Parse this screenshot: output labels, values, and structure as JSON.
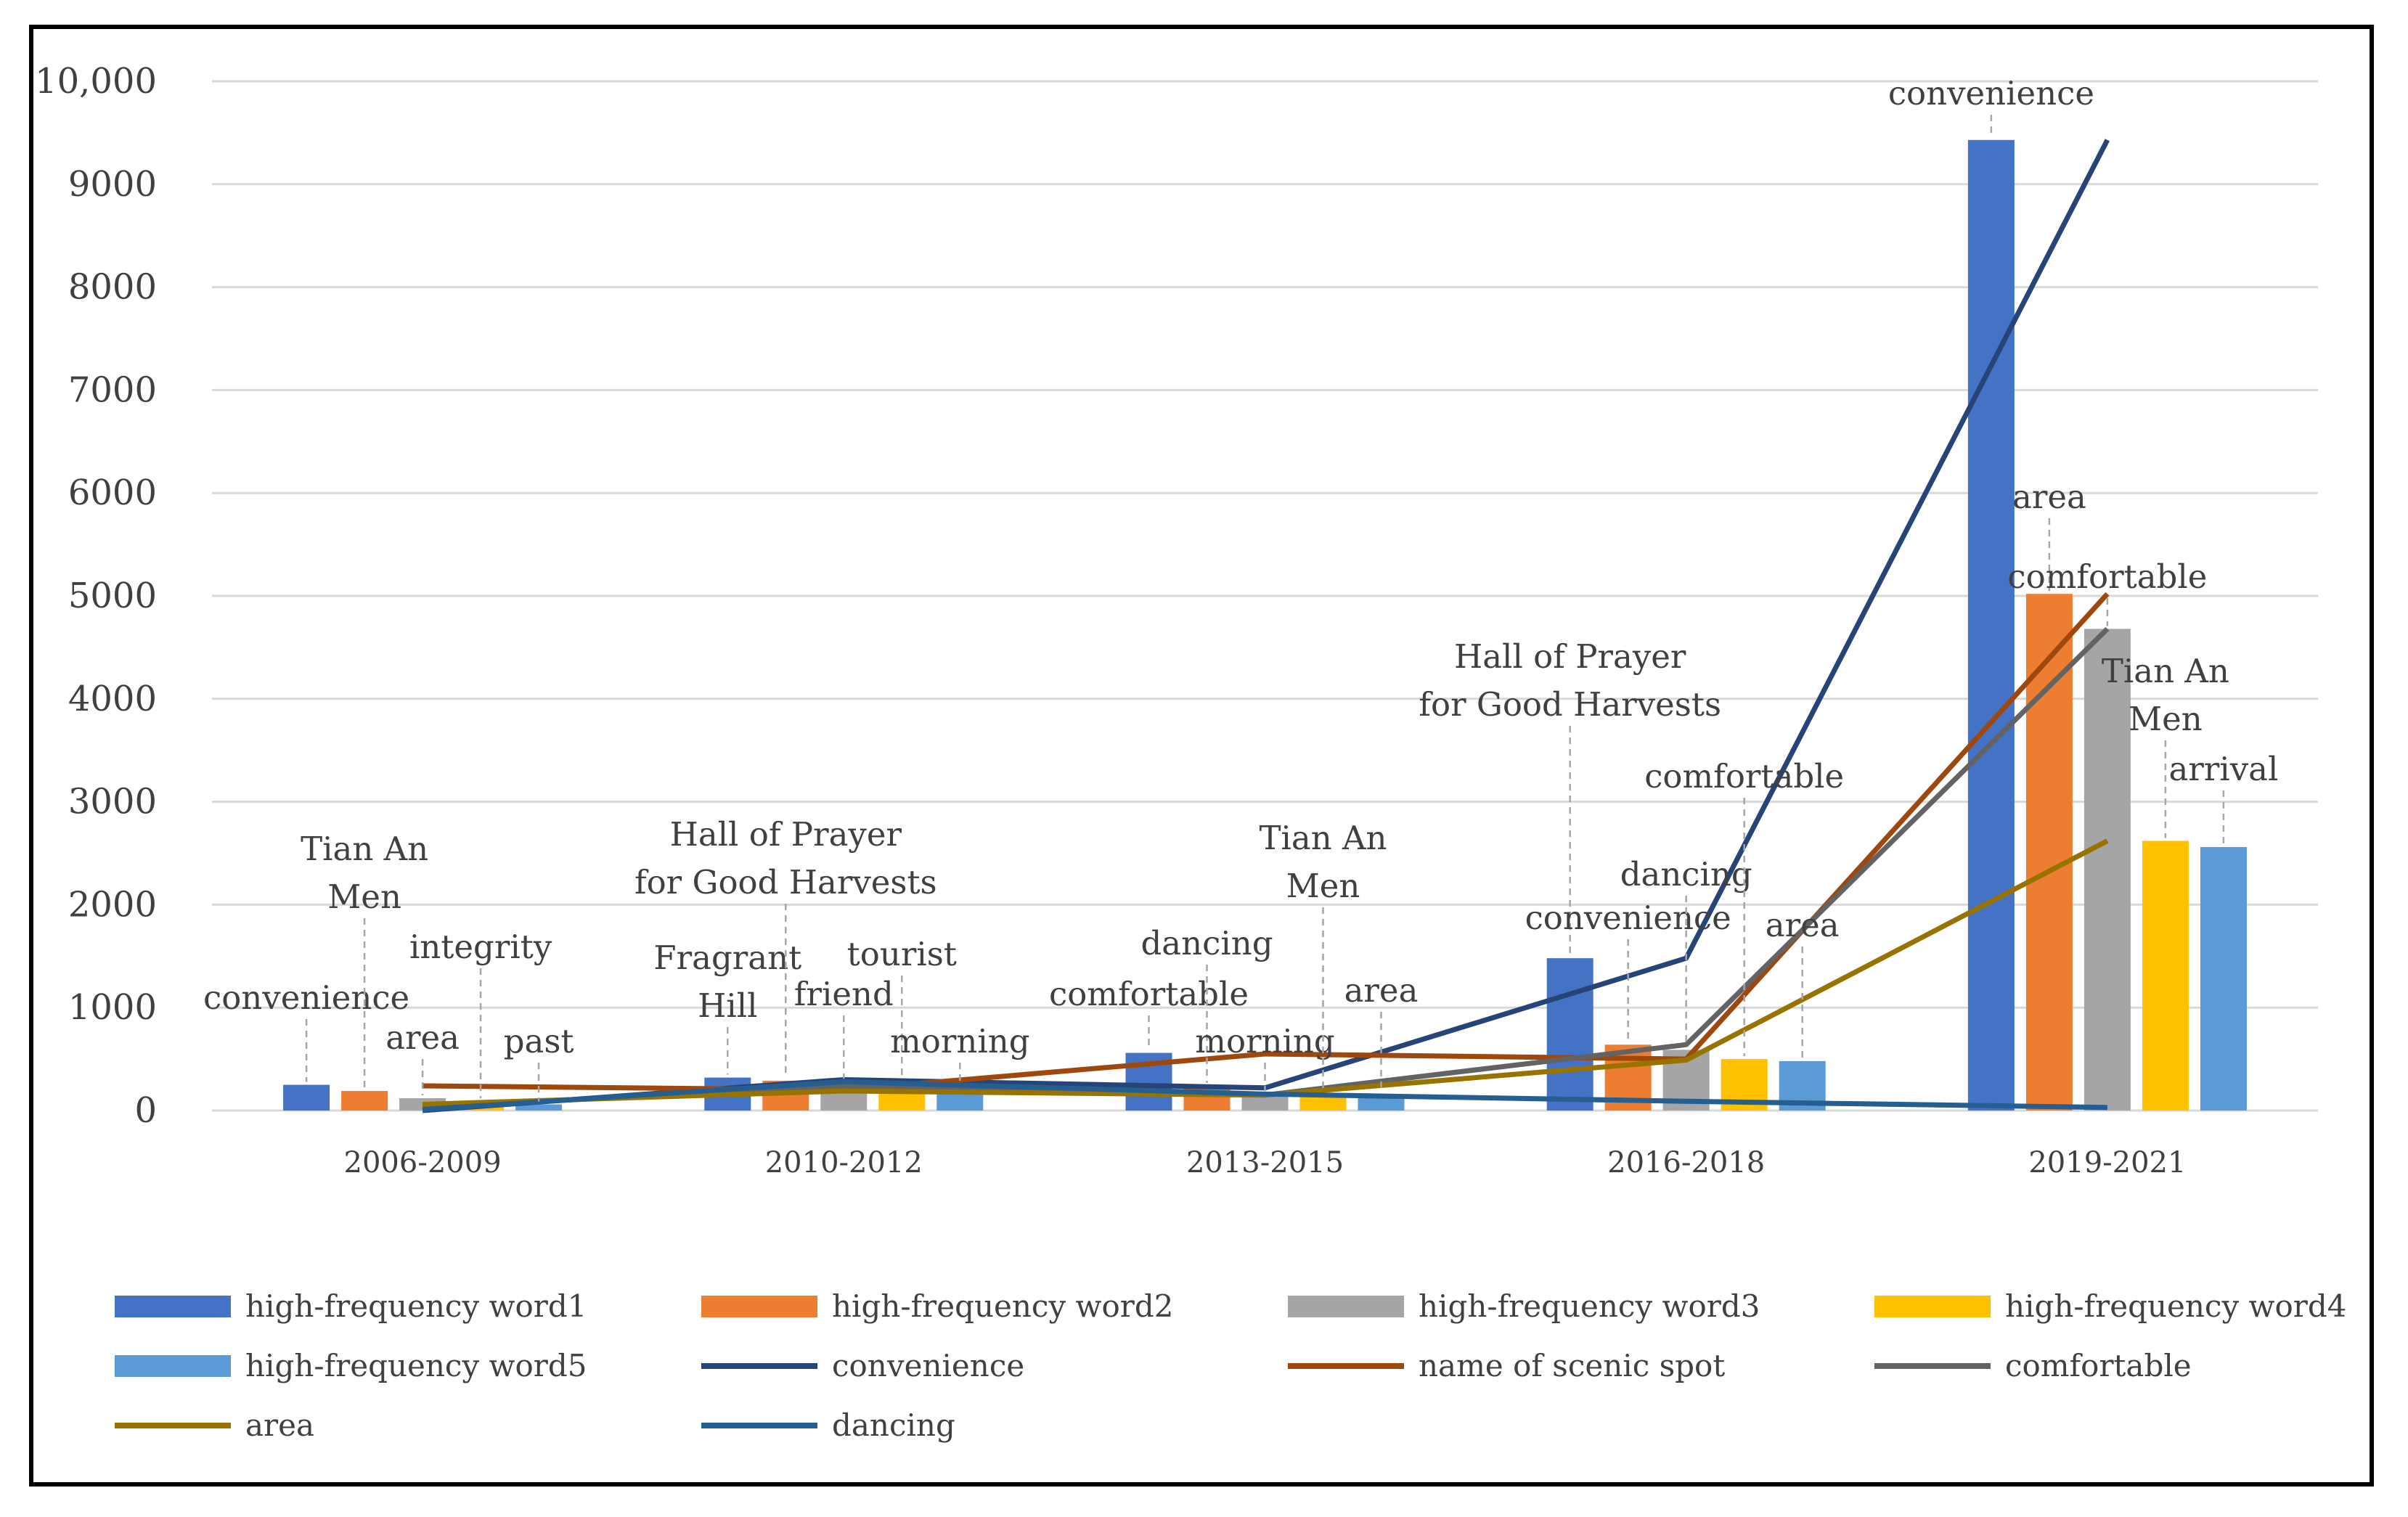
{
  "chart_data": {
    "type": "bar",
    "title": "",
    "xlabel": "",
    "ylabel": "",
    "ylim": [
      0,
      10000
    ],
    "yticks": [
      0,
      1000,
      2000,
      3000,
      4000,
      5000,
      6000,
      7000,
      8000,
      9000,
      10000
    ],
    "ytick_labels": [
      "0",
      "1000",
      "2000",
      "3000",
      "4000",
      "5000",
      "6000",
      "7000",
      "8000",
      "9000",
      "10,000"
    ],
    "grid": true,
    "legend_position": "bottom",
    "categories": [
      "2006-2009",
      "2010-2012",
      "2013-2015",
      "2016-2018",
      "2019-2021"
    ],
    "bar_series": [
      {
        "name": "high-frequency word1",
        "color": "#4472C4",
        "values": [
          250,
          320,
          560,
          1480,
          9430
        ],
        "words": [
          "convenience",
          "Fragrant Hill",
          "comfortable",
          "Hall of Prayer for Good Harvests",
          "convenience"
        ]
      },
      {
        "name": "high-frequency word2",
        "color": "#ED7D31",
        "values": [
          190,
          290,
          240,
          640,
          5020
        ],
        "words": [
          "Tian An Men",
          "Hall of Prayer for Good Harvests",
          "dancing",
          "convenience",
          "area"
        ]
      },
      {
        "name": "high-frequency word3",
        "color": "#A5A5A5",
        "values": [
          120,
          280,
          160,
          590,
          4680
        ],
        "words": [
          "area",
          "friend",
          "morning",
          "dancing",
          "comfortable"
        ]
      },
      {
        "name": "high-frequency word4",
        "color": "#FFC000",
        "values": [
          90,
          270,
          150,
          500,
          2620
        ],
        "words": [
          "integrity",
          "tourist",
          "Tian An Men",
          "comfortable",
          "Tian An Men"
        ]
      },
      {
        "name": "high-frequency word5",
        "color": "#5B9BD5",
        "values": [
          60,
          260,
          150,
          480,
          2560
        ],
        "words": [
          "past",
          "morning",
          "area",
          "area",
          "arrival"
        ]
      }
    ],
    "line_series": [
      {
        "name": "convenience",
        "color": "#264478",
        "values": [
          0,
          300,
          220,
          1480,
          9430
        ]
      },
      {
        "name": "name of scenic spot",
        "color": "#9E480E",
        "values": [
          240,
          200,
          550,
          500,
          5020
        ]
      },
      {
        "name": "comfortable",
        "color": "#636363",
        "values": [
          30,
          240,
          150,
          640,
          4680
        ]
      },
      {
        "name": "area",
        "color": "#997300",
        "values": [
          60,
          190,
          150,
          490,
          2620
        ]
      },
      {
        "name": "dancing",
        "color": "#255E91",
        "values": [
          10,
          280,
          160,
          90,
          30
        ]
      }
    ],
    "annotations": [
      {
        "category": 0,
        "series": 0,
        "lines": [
          "convenience"
        ]
      },
      {
        "category": 0,
        "series": 1,
        "lines": [
          "Tian An",
          "Men"
        ]
      },
      {
        "category": 0,
        "series": 2,
        "lines": [
          "area"
        ]
      },
      {
        "category": 0,
        "series": 3,
        "lines": [
          "integrity"
        ]
      },
      {
        "category": 0,
        "series": 4,
        "lines": [
          "past"
        ]
      },
      {
        "category": 1,
        "series": 0,
        "lines": [
          "Fragrant",
          "Hill"
        ]
      },
      {
        "category": 1,
        "series": 1,
        "lines": [
          "Hall of Prayer",
          "for Good Harvests"
        ]
      },
      {
        "category": 1,
        "series": 2,
        "lines": [
          "friend"
        ]
      },
      {
        "category": 1,
        "series": 3,
        "lines": [
          "tourist"
        ]
      },
      {
        "category": 1,
        "series": 4,
        "lines": [
          "morning"
        ]
      },
      {
        "category": 2,
        "series": 0,
        "lines": [
          "comfortable"
        ]
      },
      {
        "category": 2,
        "series": 1,
        "lines": [
          "dancing"
        ]
      },
      {
        "category": 2,
        "series": 2,
        "lines": [
          "morning"
        ]
      },
      {
        "category": 2,
        "series": 3,
        "lines": [
          "Tian An",
          "Men"
        ]
      },
      {
        "category": 2,
        "series": 4,
        "lines": [
          "area"
        ]
      },
      {
        "category": 3,
        "series": 0,
        "lines": [
          "Hall of Prayer",
          "for Good Harvests"
        ]
      },
      {
        "category": 3,
        "series": 1,
        "lines": [
          "convenience"
        ]
      },
      {
        "category": 3,
        "series": 2,
        "lines": [
          "dancing"
        ]
      },
      {
        "category": 3,
        "series": 3,
        "lines": [
          "comfortable"
        ]
      },
      {
        "category": 3,
        "series": 4,
        "lines": [
          "area"
        ]
      },
      {
        "category": 4,
        "series": 0,
        "lines": [
          "convenience"
        ]
      },
      {
        "category": 4,
        "series": 1,
        "lines": [
          "area"
        ]
      },
      {
        "category": 4,
        "series": 2,
        "lines": [
          "comfortable"
        ]
      },
      {
        "category": 4,
        "series": 3,
        "lines": [
          "Tian An",
          "Men"
        ]
      },
      {
        "category": 4,
        "series": 4,
        "lines": [
          "arrival"
        ]
      }
    ]
  }
}
